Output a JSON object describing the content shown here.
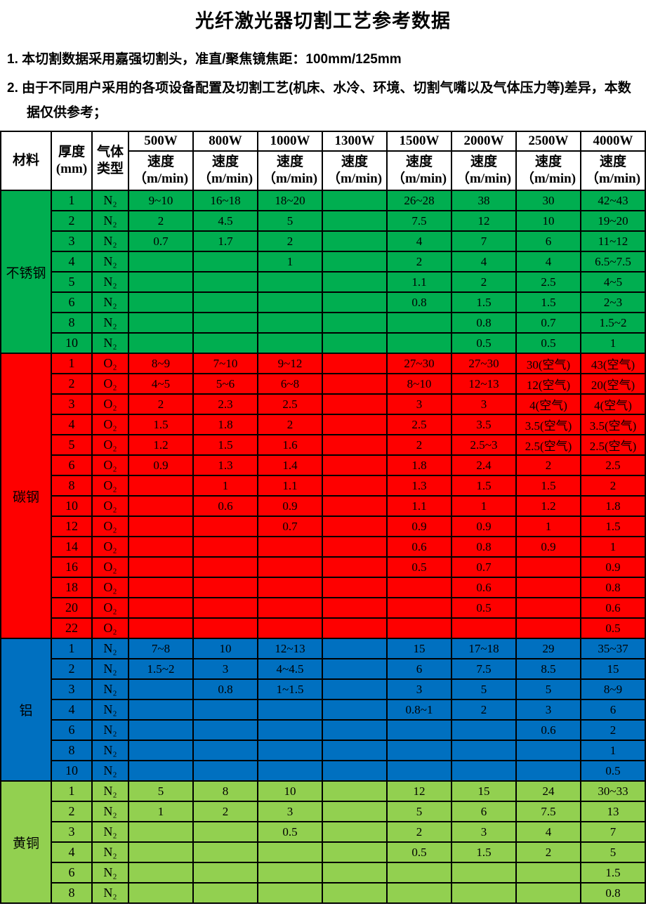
{
  "title": "光纤激光器切割工艺参考数据",
  "notes": [
    "1. 本切割数据采用嘉强切割头，准直/聚焦镜焦距：100mm/125mm",
    "2. 由于不同用户采用的各项设备配置及切割工艺(机床、水冷、环境、切割气嘴以及气体压力等)差异，本数据仅供参考；"
  ],
  "table": {
    "header": {
      "material": "材料",
      "thickness": "厚度\n(mm)",
      "gas": "气体\n类型",
      "powers": [
        "500W",
        "800W",
        "1000W",
        "1300W",
        "1500W",
        "2000W",
        "2500W",
        "4000W"
      ],
      "speed": "速度\n（m/min)"
    },
    "sections": [
      {
        "material": "不锈钢",
        "color": "#00AE50",
        "gas": "N₂",
        "rows": [
          {
            "t": "1",
            "v": [
              "9~10",
              "16~18",
              "18~20",
              "",
              "26~28",
              "38",
              "30",
              "42~43"
            ]
          },
          {
            "t": "2",
            "v": [
              "2",
              "4.5",
              "5",
              "",
              "7.5",
              "12",
              "10",
              "19~20"
            ]
          },
          {
            "t": "3",
            "v": [
              "0.7",
              "1.7",
              "2",
              "",
              "4",
              "7",
              "6",
              "11~12"
            ]
          },
          {
            "t": "4",
            "v": [
              "",
              "",
              "1",
              "",
              "2",
              "4",
              "4",
              "6.5~7.5"
            ]
          },
          {
            "t": "5",
            "v": [
              "",
              "",
              "",
              "",
              "1.1",
              "2",
              "2.5",
              "4~5"
            ]
          },
          {
            "t": "6",
            "v": [
              "",
              "",
              "",
              "",
              "0.8",
              "1.5",
              "1.5",
              "2~3"
            ]
          },
          {
            "t": "8",
            "v": [
              "",
              "",
              "",
              "",
              "",
              "0.8",
              "0.7",
              "1.5~2"
            ]
          },
          {
            "t": "10",
            "v": [
              "",
              "",
              "",
              "",
              "",
              "0.5",
              "0.5",
              "1"
            ]
          }
        ]
      },
      {
        "material": "碳钢",
        "color": "#FE0000",
        "gas": "O₂",
        "rows": [
          {
            "t": "1",
            "v": [
              "8~9",
              "7~10",
              "9~12",
              "",
              "27~30",
              "27~30",
              "30(空气)",
              "43(空气)"
            ]
          },
          {
            "t": "2",
            "v": [
              "4~5",
              "5~6",
              "6~8",
              "",
              "8~10",
              "12~13",
              "12(空气)",
              "20(空气)"
            ]
          },
          {
            "t": "3",
            "v": [
              "2",
              "2.3",
              "2.5",
              "",
              "3",
              "3",
              "4(空气)",
              "4(空气)"
            ]
          },
          {
            "t": "4",
            "v": [
              "1.5",
              "1.8",
              "2",
              "",
              "2.5",
              "3.5",
              "3.5(空气)",
              "3.5(空气)"
            ]
          },
          {
            "t": "5",
            "v": [
              "1.2",
              "1.5",
              "1.6",
              "",
              "2",
              "2.5~3",
              "2.5(空气)",
              "2.5(空气)"
            ]
          },
          {
            "t": "6",
            "v": [
              "0.9",
              "1.3",
              "1.4",
              "",
              "1.8",
              "2.4",
              "2",
              "2.5"
            ]
          },
          {
            "t": "8",
            "v": [
              "",
              "1",
              "1.1",
              "",
              "1.3",
              "1.5",
              "1.5",
              "2"
            ]
          },
          {
            "t": "10",
            "v": [
              "",
              "0.6",
              "0.9",
              "",
              "1.1",
              "1",
              "1.2",
              "1.8"
            ]
          },
          {
            "t": "12",
            "v": [
              "",
              "",
              "0.7",
              "",
              "0.9",
              "0.9",
              "1",
              "1.5"
            ]
          },
          {
            "t": "14",
            "v": [
              "",
              "",
              "",
              "",
              "0.6",
              "0.8",
              "0.9",
              "1"
            ]
          },
          {
            "t": "16",
            "v": [
              "",
              "",
              "",
              "",
              "0.5",
              "0.7",
              "",
              "0.9"
            ]
          },
          {
            "t": "18",
            "v": [
              "",
              "",
              "",
              "",
              "",
              "0.6",
              "",
              "0.8"
            ]
          },
          {
            "t": "20",
            "v": [
              "",
              "",
              "",
              "",
              "",
              "0.5",
              "",
              "0.6"
            ]
          },
          {
            "t": "22",
            "v": [
              "",
              "",
              "",
              "",
              "",
              "",
              "",
              "0.5"
            ]
          }
        ]
      },
      {
        "material": "铝",
        "color": "#0070C0",
        "gas": "N₂",
        "rows": [
          {
            "t": "1",
            "v": [
              "7~8",
              "10",
              "12~13",
              "",
              "15",
              "17~18",
              "29",
              "35~37"
            ]
          },
          {
            "t": "2",
            "v": [
              "1.5~2",
              "3",
              "4~4.5",
              "",
              "6",
              "7.5",
              "8.5",
              "15"
            ]
          },
          {
            "t": "3",
            "v": [
              "",
              "0.8",
              "1~1.5",
              "",
              "3",
              "5",
              "5",
              "8~9"
            ]
          },
          {
            "t": "4",
            "v": [
              "",
              "",
              "",
              "",
              "0.8~1",
              "2",
              "3",
              "6"
            ]
          },
          {
            "t": "6",
            "v": [
              "",
              "",
              "",
              "",
              "",
              "",
              "0.6",
              "2"
            ]
          },
          {
            "t": "8",
            "v": [
              "",
              "",
              "",
              "",
              "",
              "",
              "",
              "1"
            ]
          },
          {
            "t": "10",
            "v": [
              "",
              "",
              "",
              "",
              "",
              "",
              "",
              "0.5"
            ]
          }
        ]
      },
      {
        "material": "黄铜",
        "color": "#92D050",
        "gas": "N₂",
        "rows": [
          {
            "t": "1",
            "v": [
              "5",
              "8",
              "10",
              "",
              "12",
              "15",
              "24",
              "30~33"
            ]
          },
          {
            "t": "2",
            "v": [
              "1",
              "2",
              "3",
              "",
              "5",
              "6",
              "7.5",
              "13"
            ]
          },
          {
            "t": "3",
            "v": [
              "",
              "",
              "0.5",
              "",
              "2",
              "3",
              "4",
              "7"
            ]
          },
          {
            "t": "4",
            "v": [
              "",
              "",
              "",
              "",
              "0.5",
              "1.5",
              "2",
              "5"
            ]
          },
          {
            "t": "6",
            "v": [
              "",
              "",
              "",
              "",
              "",
              "",
              "",
              "1.5"
            ]
          },
          {
            "t": "8",
            "v": [
              "",
              "",
              "",
              "",
              "",
              "",
              "",
              "0.8"
            ]
          }
        ]
      }
    ]
  }
}
